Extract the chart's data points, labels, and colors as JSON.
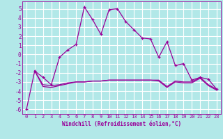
{
  "background_color": "#b2e8e8",
  "grid_color": "#ffffff",
  "line_color": "#990099",
  "xlabel": "Windchill (Refroidissement éolien,°C)",
  "xlim": [
    -0.5,
    23.5
  ],
  "ylim": [
    -6.5,
    5.8
  ],
  "yticks": [
    -6,
    -5,
    -4,
    -3,
    -2,
    -1,
    0,
    1,
    2,
    3,
    4,
    5
  ],
  "xticks": [
    0,
    1,
    2,
    3,
    4,
    5,
    6,
    7,
    8,
    9,
    10,
    11,
    12,
    13,
    14,
    15,
    16,
    17,
    18,
    19,
    20,
    21,
    22,
    23
  ],
  "line1_x": [
    0,
    1,
    2,
    3,
    4,
    5,
    6,
    7,
    8,
    9,
    10,
    11,
    12,
    13,
    14,
    15,
    16,
    17,
    18,
    19,
    20,
    21,
    22,
    23
  ],
  "line1_y": [
    -6.0,
    -1.8,
    -2.5,
    -3.3,
    -0.3,
    0.5,
    1.1,
    5.2,
    3.8,
    2.2,
    4.9,
    5.0,
    3.6,
    2.7,
    1.8,
    1.7,
    -0.3,
    1.4,
    -1.2,
    -1.0,
    -2.8,
    -2.5,
    -2.7,
    -3.8
  ],
  "line2_x": [
    1,
    2,
    3,
    4,
    5,
    6,
    7,
    8,
    9,
    10,
    11,
    12,
    13,
    14,
    15,
    16,
    17,
    18,
    19,
    20,
    21,
    22,
    23
  ],
  "line2_y": [
    -1.8,
    -3.3,
    -3.4,
    -3.3,
    -3.1,
    -3.0,
    -3.0,
    -2.9,
    -2.9,
    -2.8,
    -2.8,
    -2.8,
    -2.8,
    -2.8,
    -2.8,
    -2.8,
    -3.5,
    -2.9,
    -3.0,
    -3.0,
    -2.5,
    -3.3,
    -3.8
  ],
  "line3_x": [
    1,
    2,
    3,
    4,
    5,
    6,
    7,
    8,
    9,
    10,
    11,
    12,
    13,
    14,
    15,
    16,
    17,
    18,
    19,
    20,
    21,
    22,
    23
  ],
  "line3_y": [
    -1.8,
    -3.5,
    -3.6,
    -3.4,
    -3.2,
    -3.0,
    -3.0,
    -2.9,
    -2.9,
    -2.8,
    -2.8,
    -2.8,
    -2.8,
    -2.8,
    -2.8,
    -2.9,
    -3.6,
    -3.0,
    -3.1,
    -3.1,
    -2.6,
    -3.4,
    -3.9
  ],
  "tick_fontsize": 5.0,
  "xlabel_fontsize": 5.5
}
